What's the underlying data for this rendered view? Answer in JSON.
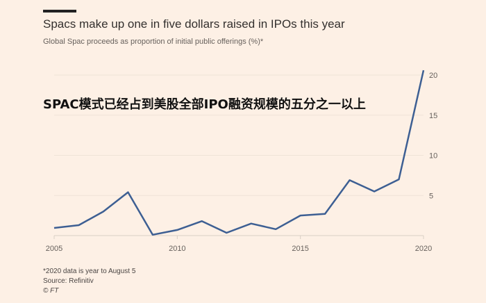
{
  "chart_data": {
    "type": "line",
    "title": "Spacs make up one in five dollars raised in IPOs this year",
    "subtitle": "Global Spac proceeds as proportion of initial public offerings (%)*",
    "annotation": "SPAC模式已经占到美股全部IPO融资规模的五分之一以上",
    "xlabel": "",
    "ylabel": "",
    "x": [
      2005,
      2006,
      2007,
      2008,
      2009,
      2010,
      2011,
      2012,
      2013,
      2014,
      2015,
      2016,
      2017,
      2018,
      2019,
      2020
    ],
    "series": [
      {
        "name": "Spac share of IPO proceeds (%)",
        "values": [
          0.95,
          1.3,
          3.0,
          5.4,
          0.1,
          0.7,
          1.8,
          0.35,
          1.5,
          0.8,
          2.5,
          2.7,
          6.9,
          5.5,
          7.0,
          20.6
        ],
        "color": "#3d5f93"
      }
    ],
    "xlim": [
      2005,
      2020
    ],
    "ylim": [
      0,
      20
    ],
    "xticks": [
      "2005",
      "2010",
      "2015",
      "2020"
    ],
    "yticks": [
      "5",
      "10",
      "15",
      "20"
    ],
    "grid": true,
    "legend": "none"
  },
  "footer": {
    "note": "*2020 data is year to August 5",
    "source": "Source: Refinitiv",
    "credit": "© FT"
  }
}
